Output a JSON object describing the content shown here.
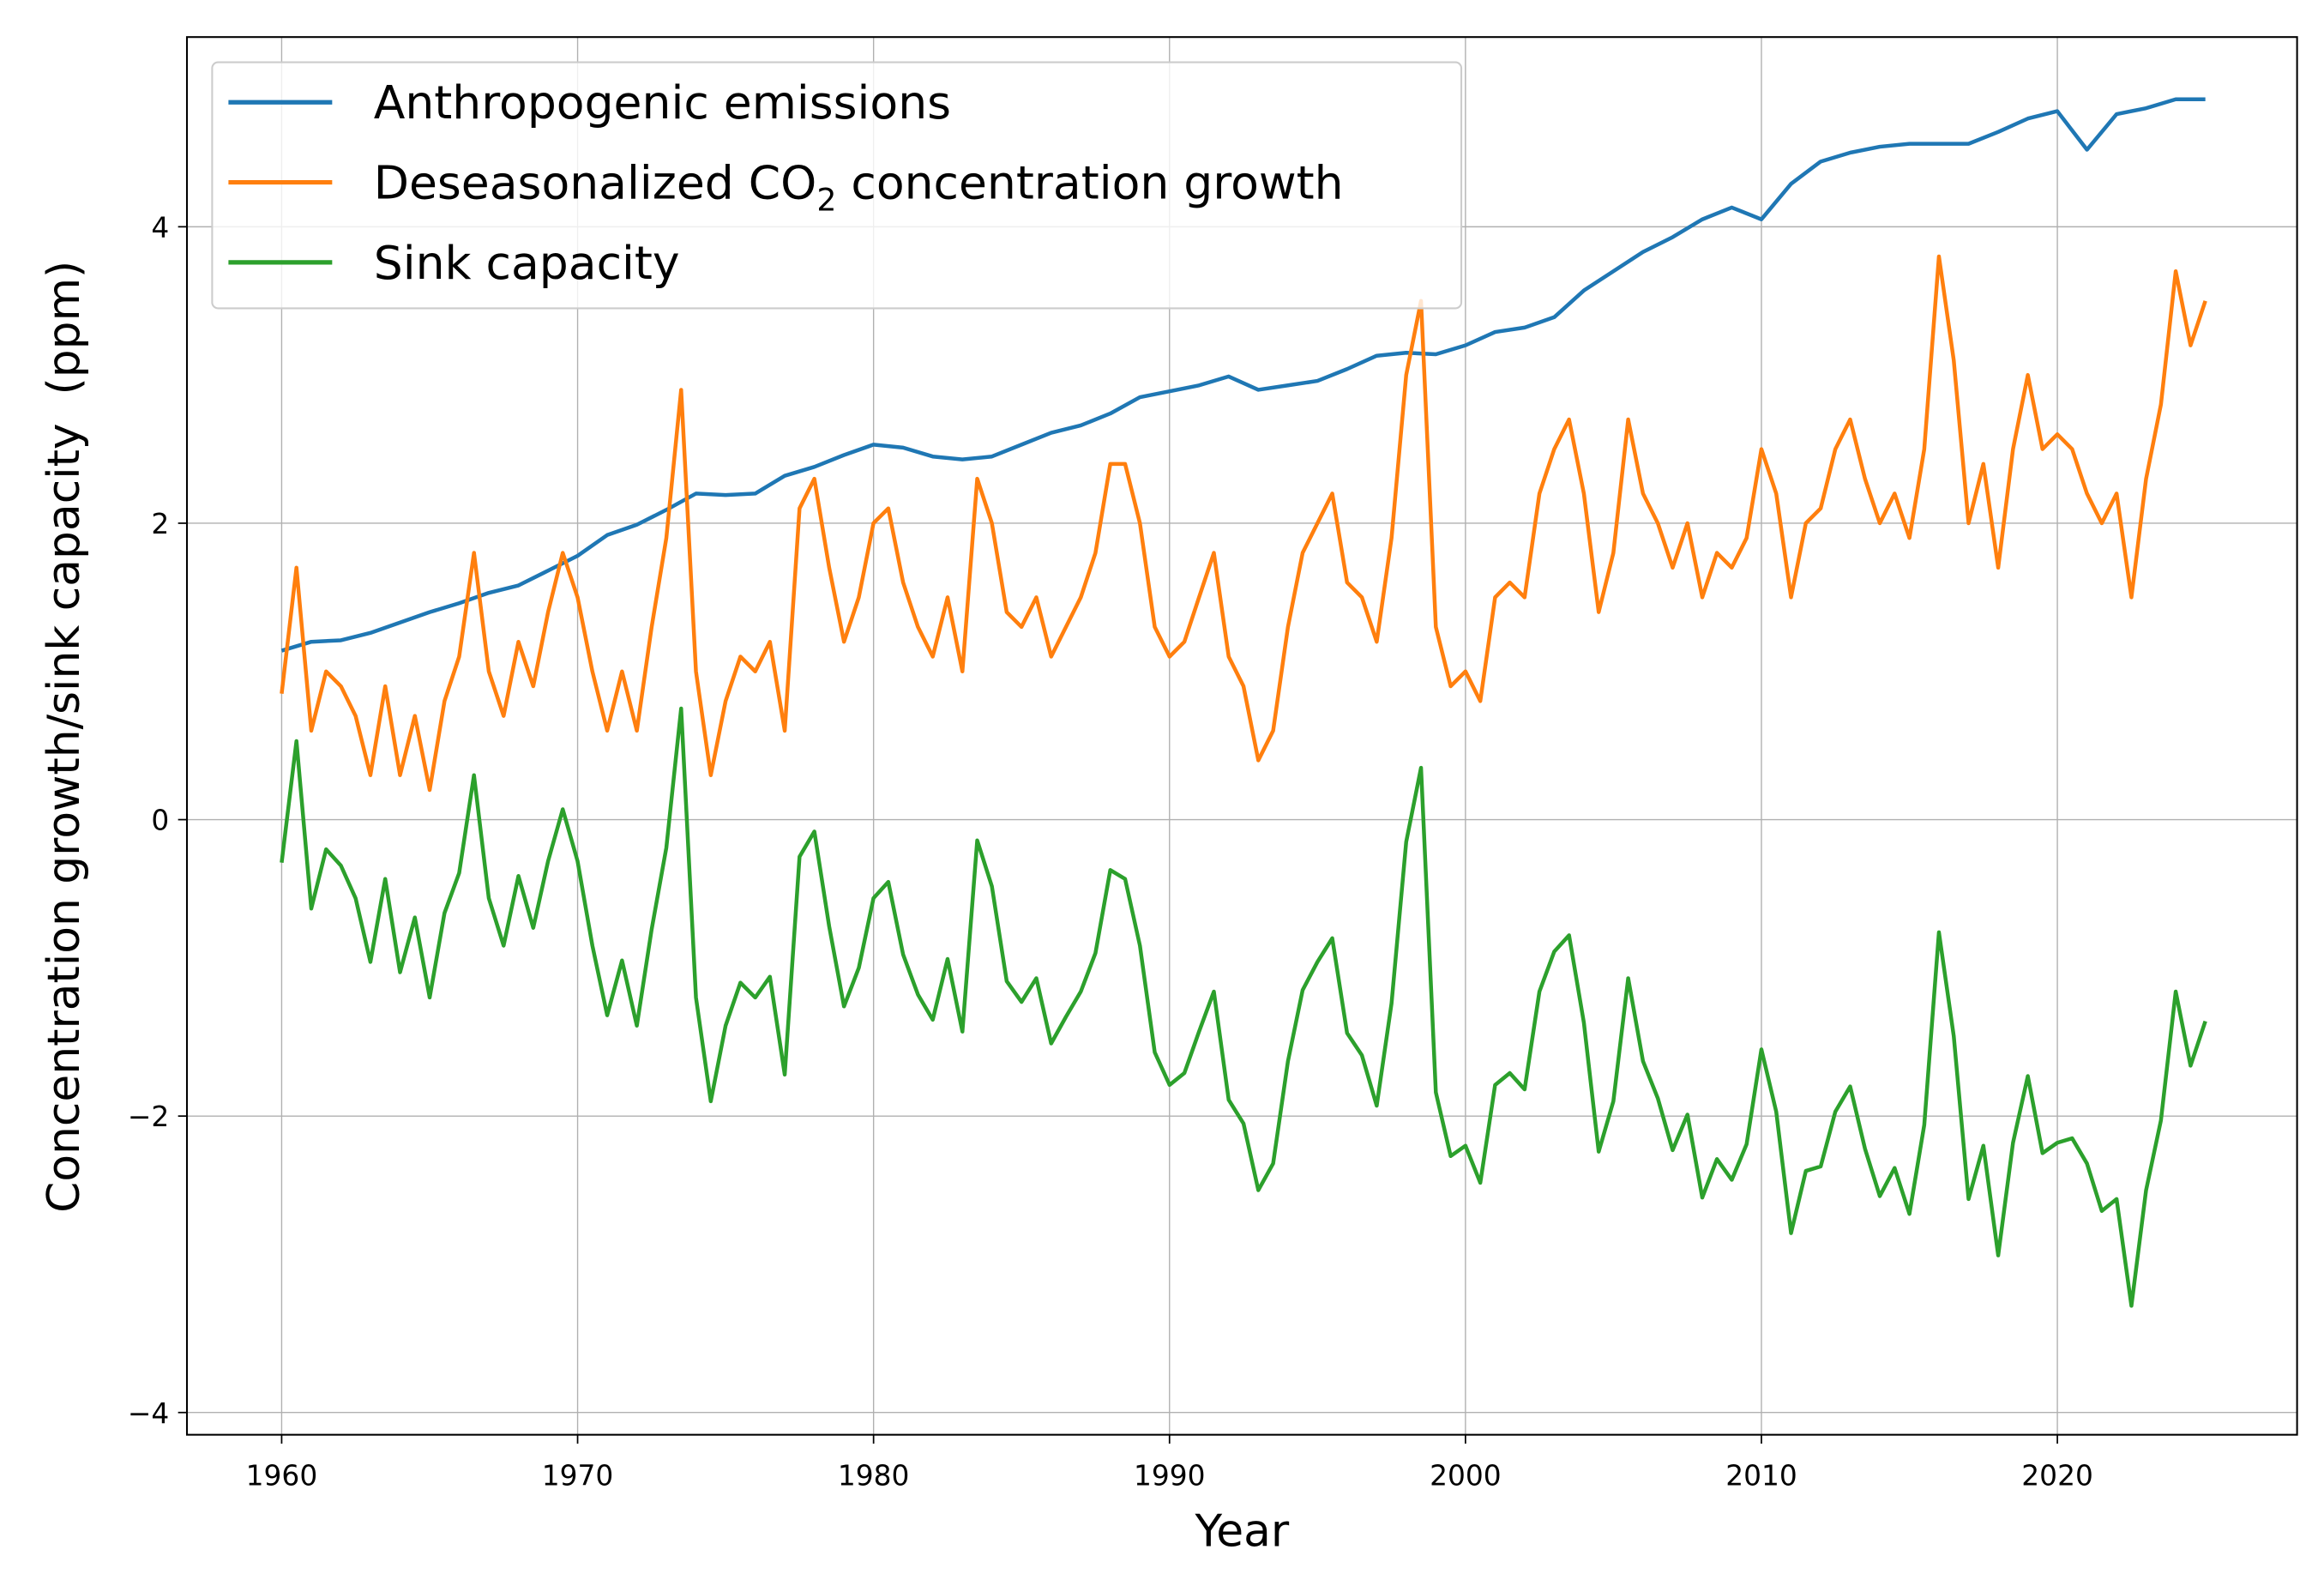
{
  "chart_data": {
    "type": "line",
    "xlabel": "Year",
    "ylabel": "Concentration growth/sink capacity  (ppm)",
    "xlim": [
      1956.8,
      2028.1
    ],
    "ylim": [
      -4.15,
      5.28
    ],
    "xticks": [
      1960,
      1970,
      1980,
      1990,
      2000,
      2010,
      2020
    ],
    "yticks": [
      -4,
      -2,
      0,
      2,
      4
    ],
    "grid": true,
    "legend_placement": "upper-left",
    "series": [
      {
        "name": "Anthropogenic emissions",
        "color": "#1f77b4",
        "x": [
          1960,
          1961,
          1962,
          1963,
          1964,
          1965,
          1966,
          1967,
          1968,
          1969,
          1970,
          1971,
          1972,
          1973,
          1974,
          1975,
          1976,
          1977,
          1978,
          1979,
          1980,
          1981,
          1982,
          1983,
          1984,
          1985,
          1986,
          1987,
          1988,
          1989,
          1990,
          1991,
          1992,
          1993,
          1994,
          1995,
          1996,
          1997,
          1998,
          1999,
          2000,
          2001,
          2002,
          2003,
          2004,
          2005,
          2006,
          2007,
          2008,
          2009,
          2010,
          2011,
          2012,
          2013,
          2014,
          2015,
          2016,
          2017,
          2018,
          2019,
          2020,
          2021,
          2022,
          2023,
          2024,
          2025
        ],
        "y": [
          1.14,
          1.2,
          1.21,
          1.26,
          1.33,
          1.4,
          1.46,
          1.53,
          1.58,
          1.68,
          1.78,
          1.92,
          1.99,
          2.09,
          2.2,
          2.19,
          2.2,
          2.32,
          2.38,
          2.46,
          2.53,
          2.51,
          2.45,
          2.43,
          2.45,
          2.53,
          2.61,
          2.66,
          2.74,
          2.85,
          2.89,
          2.93,
          2.99,
          2.9,
          2.93,
          2.96,
          3.04,
          3.13,
          3.15,
          3.14,
          3.2,
          3.29,
          3.32,
          3.39,
          3.57,
          3.7,
          3.83,
          3.93,
          4.05,
          4.13,
          4.05,
          4.29,
          4.44,
          4.5,
          4.54,
          4.56,
          4.56,
          4.56,
          4.64,
          4.73,
          4.78,
          4.52,
          4.76,
          4.8,
          4.86,
          4.86
        ]
      },
      {
        "name": "Deseasonalized CO₂ concentration growth",
        "name_main": "Deseasonalized CO",
        "name_sub": "2",
        "name_tail": " concentration growth",
        "color": "#ff7f0e",
        "x_start": 1960,
        "x_step": 0.5,
        "y": [
          0.85,
          1.7,
          0.6,
          1.0,
          0.9,
          0.7,
          0.3,
          0.9,
          0.3,
          0.7,
          0.2,
          0.8,
          1.1,
          1.8,
          1.0,
          0.7,
          1.2,
          0.9,
          1.4,
          1.8,
          1.5,
          1.0,
          0.6,
          1.0,
          0.6,
          1.3,
          1.9,
          2.9,
          1.0,
          0.3,
          0.8,
          1.1,
          1.0,
          1.2,
          0.6,
          2.1,
          2.3,
          1.7,
          1.2,
          1.5,
          2.0,
          2.1,
          1.6,
          1.3,
          1.1,
          1.5,
          1.0,
          2.3,
          2.0,
          1.4,
          1.3,
          1.5,
          1.1,
          1.3,
          1.5,
          1.8,
          2.4,
          2.4,
          2.0,
          1.3,
          1.1,
          1.2,
          1.5,
          1.8,
          1.1,
          0.9,
          0.4,
          0.6,
          1.3,
          1.8,
          2.0,
          2.2,
          1.6,
          1.5,
          1.2,
          1.9,
          3.0,
          3.5,
          1.3,
          0.9,
          1.0,
          0.8,
          1.5,
          1.6,
          1.5,
          2.2,
          2.5,
          2.7,
          2.2,
          1.4,
          1.8,
          2.7,
          2.2,
          2.0,
          1.7,
          2.0,
          1.5,
          1.8,
          1.7,
          1.9,
          2.5,
          2.2,
          1.5,
          2.0,
          2.1,
          2.5,
          2.7,
          2.3,
          2.0,
          2.2,
          1.9,
          2.5,
          3.8,
          3.1,
          2.0,
          2.4,
          1.7,
          2.5,
          3.0,
          2.5,
          2.6,
          2.5,
          2.2,
          2.0,
          2.2,
          1.5,
          2.3,
          2.8,
          3.7,
          3.2,
          3.5
        ]
      },
      {
        "name": "Sink capacity",
        "color": "#2ca02c",
        "x_start": 1960,
        "x_step": 0.5,
        "y": [
          -0.29,
          0.53,
          -0.6,
          -0.2,
          -0.31,
          -0.53,
          -0.96,
          -0.4,
          -1.03,
          -0.66,
          -1.2,
          -0.63,
          -0.36,
          0.3,
          -0.53,
          -0.85,
          -0.38,
          -0.73,
          -0.28,
          0.07,
          -0.28,
          -0.85,
          -1.32,
          -0.95,
          -1.39,
          -0.74,
          -0.19,
          0.75,
          -1.2,
          -1.9,
          -1.39,
          -1.1,
          -1.2,
          -1.06,
          -1.72,
          -0.25,
          -0.08,
          -0.72,
          -1.26,
          -1.0,
          -0.53,
          -0.42,
          -0.91,
          -1.18,
          -1.35,
          -0.94,
          -1.43,
          -0.14,
          -0.45,
          -1.09,
          -1.23,
          -1.07,
          -1.51,
          -1.33,
          -1.16,
          -0.9,
          -0.34,
          -0.4,
          -0.85,
          -1.57,
          -1.79,
          -1.71,
          -1.43,
          -1.16,
          -1.89,
          -2.05,
          -2.5,
          -2.32,
          -1.63,
          -1.15,
          -0.96,
          -0.8,
          -1.44,
          -1.59,
          -1.93,
          -1.24,
          -0.15,
          0.35,
          -1.84,
          -2.27,
          -2.2,
          -2.45,
          -1.79,
          -1.71,
          -1.82,
          -1.16,
          -0.89,
          -0.78,
          -1.37,
          -2.24,
          -1.9,
          -1.07,
          -1.63,
          -1.88,
          -2.23,
          -1.99,
          -2.55,
          -2.29,
          -2.43,
          -2.19,
          -1.55,
          -1.97,
          -2.79,
          -2.37,
          -2.34,
          -1.97,
          -1.8,
          -2.22,
          -2.54,
          -2.35,
          -2.66,
          -2.06,
          -0.76,
          -1.46,
          -2.56,
          -2.2,
          -2.94,
          -2.18,
          -1.73,
          -2.25,
          -2.18,
          -2.15,
          -2.32,
          -2.64,
          -2.56,
          -3.28,
          -2.5,
          -2.03,
          -1.16,
          -1.66,
          -1.36
        ]
      }
    ]
  }
}
